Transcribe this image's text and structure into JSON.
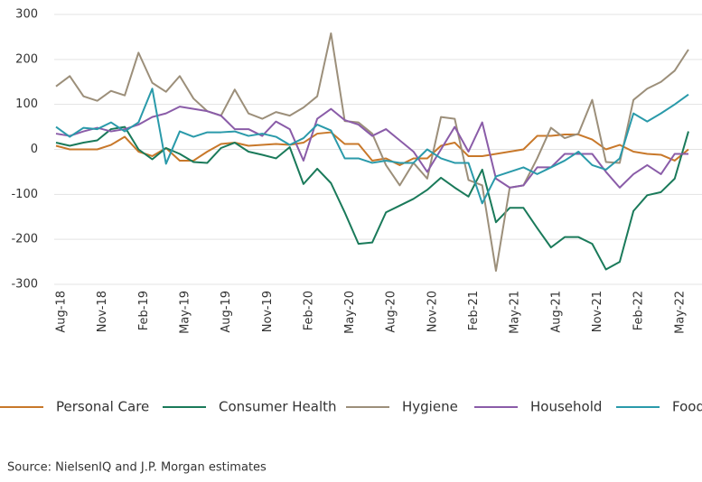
{
  "chart_data": {
    "type": "line",
    "source": "Source: NielsenIQ and J.P. Morgan estimates",
    "categories": [
      "Aug-18",
      null,
      null,
      "Nov-18",
      null,
      null,
      "Feb-19",
      null,
      null,
      "May-19",
      null,
      null,
      "Aug-19",
      null,
      null,
      "Nov-19",
      null,
      null,
      "Feb-20",
      null,
      null,
      "May-20",
      null,
      null,
      "Aug-20",
      null,
      null,
      "Nov-20",
      null,
      null,
      "Feb-21",
      null,
      null,
      "May-21",
      null,
      null,
      "Aug-21",
      null,
      null,
      "Nov-21",
      null,
      null,
      "Feb-22",
      null,
      null,
      "May-22",
      null
    ],
    "series": [
      {
        "name": "Personal Care",
        "color": "#c8782a",
        "values": [
          8,
          0,
          0,
          0,
          10,
          28,
          -5,
          -15,
          3,
          -25,
          -25,
          -5,
          12,
          15,
          8,
          10,
          12,
          10,
          15,
          35,
          38,
          12,
          12,
          -25,
          -20,
          -35,
          -20,
          -20,
          8,
          15,
          -15,
          -15,
          -10,
          -5,
          0,
          30,
          30,
          33,
          33,
          22,
          0,
          10,
          -5,
          -10,
          -12,
          -25,
          0
        ]
      },
      {
        "name": "Consumer Health",
        "color": "#1a7a5a",
        "values": [
          15,
          8,
          15,
          20,
          45,
          50,
          0,
          -22,
          3,
          -10,
          -28,
          -30,
          3,
          15,
          -5,
          -12,
          -20,
          5,
          -77,
          -43,
          -75,
          -140,
          -210,
          -207,
          -140,
          -125,
          -110,
          -90,
          -63,
          -85,
          -105,
          -45,
          -162,
          -130,
          -130,
          -175,
          -218,
          -195,
          -195,
          -210,
          -267,
          -250,
          -137,
          -102,
          -95,
          -65,
          40
        ]
      },
      {
        "name": "Hygiene",
        "color": "#9c8f7a",
        "values": [
          140,
          163,
          118,
          108,
          130,
          120,
          215,
          148,
          128,
          163,
          113,
          85,
          75,
          133,
          80,
          68,
          83,
          75,
          93,
          118,
          258,
          63,
          60,
          35,
          -35,
          -80,
          -30,
          -65,
          72,
          68,
          -68,
          -80,
          -270,
          -85,
          -80,
          -20,
          48,
          25,
          35,
          110,
          -28,
          -30,
          110,
          135,
          150,
          175,
          222
        ]
      },
      {
        "name": "Household",
        "color": "#8a5ca8",
        "values": [
          35,
          30,
          40,
          48,
          40,
          45,
          55,
          72,
          80,
          95,
          90,
          85,
          75,
          45,
          45,
          30,
          62,
          45,
          -25,
          68,
          90,
          65,
          55,
          30,
          45,
          20,
          -5,
          -50,
          0,
          50,
          -5,
          60,
          -65,
          -85,
          -80,
          -40,
          -40,
          -10,
          -10,
          -10,
          -50,
          -85,
          -55,
          -35,
          -55,
          -10,
          -10
        ]
      },
      {
        "name": "Food",
        "color": "#2a9aaa",
        "values": [
          50,
          28,
          48,
          45,
          60,
          40,
          60,
          135,
          -32,
          40,
          28,
          38,
          38,
          40,
          30,
          35,
          28,
          10,
          25,
          55,
          42,
          -20,
          -20,
          -30,
          -25,
          -30,
          -30,
          0,
          -20,
          -30,
          -30,
          -120,
          -60,
          -50,
          -40,
          -55,
          -40,
          -25,
          -5,
          -35,
          -45,
          -20,
          80,
          62,
          80,
          100,
          122
        ]
      }
    ],
    "ylim": [
      -300,
      300
    ],
    "yticks": [
      -300,
      -200,
      -100,
      0,
      100,
      200,
      300
    ],
    "grid": true,
    "legend": "bottom"
  }
}
